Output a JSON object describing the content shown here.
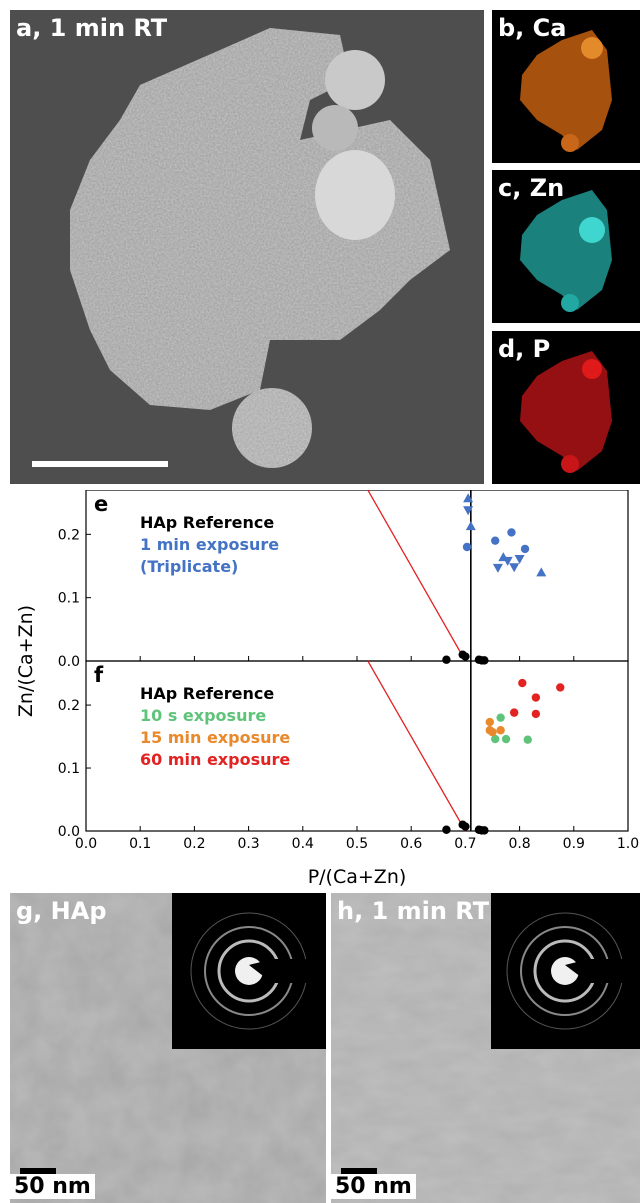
{
  "panels": {
    "a": "a, 1 min RT",
    "b": "b, Ca",
    "c": "c, Zn",
    "d": "d, P",
    "g": "g, HAp",
    "h": "h, 1 min RT"
  },
  "tem_scale_label": "50 nm",
  "colors": {
    "ca_map": "#d9731a",
    "zn_map": "#2fc7c0",
    "p_map": "#e0191b",
    "reference": "#000000",
    "one_min": "#4472c4",
    "ten_s": "#5fc47a",
    "fifteen_min": "#e9892c",
    "sixty_min": "#e32222",
    "guide_line": "#e32222"
  },
  "chart_data": [
    {
      "type": "scatter",
      "panel_label": "e",
      "xlabel": "P/(Ca+Zn)",
      "ylabel": "Zn/(Ca+Zn)",
      "xlim": [
        0.0,
        1.0
      ],
      "ylim": [
        0.0,
        0.27
      ],
      "yticks": [
        "0.0",
        "0.1",
        "0.2"
      ],
      "legend": [
        {
          "text": "HAp Reference",
          "color": "#000000"
        },
        {
          "text": "1 min exposure",
          "color": "#4472c4"
        },
        {
          "text": "(Triplicate)",
          "color": "#4472c4"
        }
      ],
      "vertical_line_x": 0.71,
      "guide_line": [
        [
          0.52,
          0.27
        ],
        [
          0.7,
          0.0
        ]
      ],
      "series": [
        {
          "color": "#000000",
          "marker": "circle",
          "points": [
            [
              0.665,
              0.002
            ],
            [
              0.695,
              0.01
            ],
            [
              0.7,
              0.007
            ],
            [
              0.725,
              0.002
            ],
            [
              0.73,
              0.001
            ],
            [
              0.735,
              0.001
            ]
          ]
        },
        {
          "color": "#4472c4",
          "marker": "circle",
          "points": [
            [
              0.703,
              0.18
            ],
            [
              0.755,
              0.19
            ],
            [
              0.785,
              0.203
            ],
            [
              0.81,
              0.177
            ]
          ]
        },
        {
          "color": "#4472c4",
          "marker": "triangle-up",
          "points": [
            [
              0.705,
              0.257
            ],
            [
              0.71,
              0.213
            ],
            [
              0.77,
              0.164
            ],
            [
              0.84,
              0.14
            ]
          ]
        },
        {
          "color": "#4472c4",
          "marker": "triangle-down",
          "points": [
            [
              0.705,
              0.238
            ],
            [
              0.76,
              0.147
            ],
            [
              0.778,
              0.158
            ],
            [
              0.79,
              0.148
            ],
            [
              0.8,
              0.161
            ]
          ]
        }
      ]
    },
    {
      "type": "scatter",
      "panel_label": "f",
      "xlabel": "P/(Ca+Zn)",
      "ylabel": "Zn/(Ca+Zn)",
      "xlim": [
        0.0,
        1.0
      ],
      "ylim": [
        0.0,
        0.27
      ],
      "xticks": [
        "0.0",
        "0.1",
        "0.2",
        "0.3",
        "0.4",
        "0.5",
        "0.6",
        "0.7",
        "0.8",
        "0.9",
        "1.0"
      ],
      "yticks": [
        "0.0",
        "0.1",
        "0.2"
      ],
      "legend": [
        {
          "text": "HAp Reference",
          "color": "#000000"
        },
        {
          "text": "10 s exposure",
          "color": "#5fc47a"
        },
        {
          "text": "15 min exposure",
          "color": "#e9892c"
        },
        {
          "text": "60 min exposure",
          "color": "#e32222"
        }
      ],
      "vertical_line_x": 0.71,
      "guide_line": [
        [
          0.52,
          0.27
        ],
        [
          0.7,
          0.0
        ]
      ],
      "series": [
        {
          "color": "#000000",
          "marker": "circle",
          "points": [
            [
              0.665,
              0.002
            ],
            [
              0.695,
              0.01
            ],
            [
              0.7,
              0.007
            ],
            [
              0.725,
              0.002
            ],
            [
              0.73,
              0.001
            ],
            [
              0.735,
              0.001
            ]
          ]
        },
        {
          "color": "#5fc47a",
          "marker": "circle",
          "points": [
            [
              0.765,
              0.18
            ],
            [
              0.755,
              0.146
            ],
            [
              0.775,
              0.146
            ],
            [
              0.815,
              0.145
            ]
          ]
        },
        {
          "color": "#e9892c",
          "marker": "circle",
          "points": [
            [
              0.745,
              0.173
            ],
            [
              0.765,
              0.16
            ],
            [
              0.745,
              0.16
            ],
            [
              0.75,
              0.157
            ]
          ]
        },
        {
          "color": "#e32222",
          "marker": "circle",
          "points": [
            [
              0.805,
              0.235
            ],
            [
              0.83,
              0.212
            ],
            [
              0.875,
              0.228
            ],
            [
              0.79,
              0.188
            ],
            [
              0.83,
              0.186
            ]
          ]
        }
      ]
    }
  ]
}
